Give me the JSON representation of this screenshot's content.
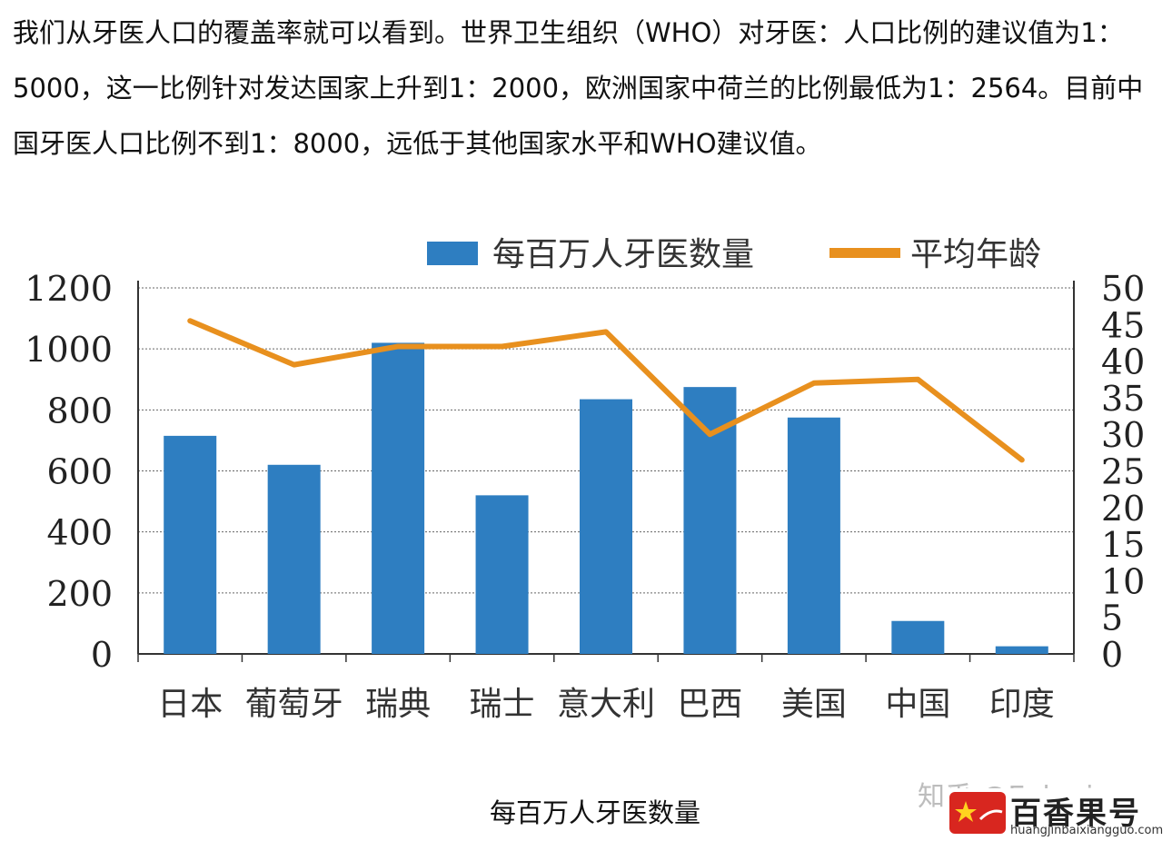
{
  "article": {
    "paragraph": "我们从牙医人口的覆盖率就可以看到。世界卫生组织（WHO）对牙医：人口比例的建议值为1：5000，这一比例针对发达国家上升到1：2000，欧洲国家中荷兰的比例最低为1：2564。目前中国牙医人口比例不到1：8000，远低于其他国家水平和WHO建议值。"
  },
  "chart_data": {
    "type": "bar",
    "categories": [
      "日本",
      "葡萄牙",
      "瑞典",
      "瑞士",
      "意大利",
      "巴西",
      "美国",
      "中国",
      "印度"
    ],
    "series": [
      {
        "name": "每百万人牙医数量",
        "type": "bar",
        "axis": "left",
        "values": [
          715,
          620,
          1020,
          520,
          835,
          875,
          775,
          108,
          25
        ]
      },
      {
        "name": "平均年龄",
        "type": "line",
        "axis": "right",
        "values": [
          45.5,
          39.5,
          42,
          42,
          44,
          30,
          37,
          37.5,
          26.5
        ]
      }
    ],
    "y_left": {
      "ylim": [
        0,
        1200
      ],
      "ticks": [
        "0",
        "200",
        "400",
        "600",
        "800",
        "1000",
        "1200"
      ]
    },
    "y_right": {
      "ylim": [
        0,
        50
      ],
      "ticks": [
        "0",
        "5",
        "10",
        "15",
        "20",
        "25",
        "30",
        "35",
        "40",
        "45",
        "50"
      ]
    },
    "grid": true,
    "legend": "top",
    "colors": {
      "bar": "#2e7ec1",
      "line": "#e8901e"
    }
  },
  "caption": "每百万人牙医数量",
  "watermark": {
    "faint_text": "知乎 @Eukaria",
    "brand_name": "百香果号",
    "brand_url": "huangjinbaixiangguo.com"
  }
}
